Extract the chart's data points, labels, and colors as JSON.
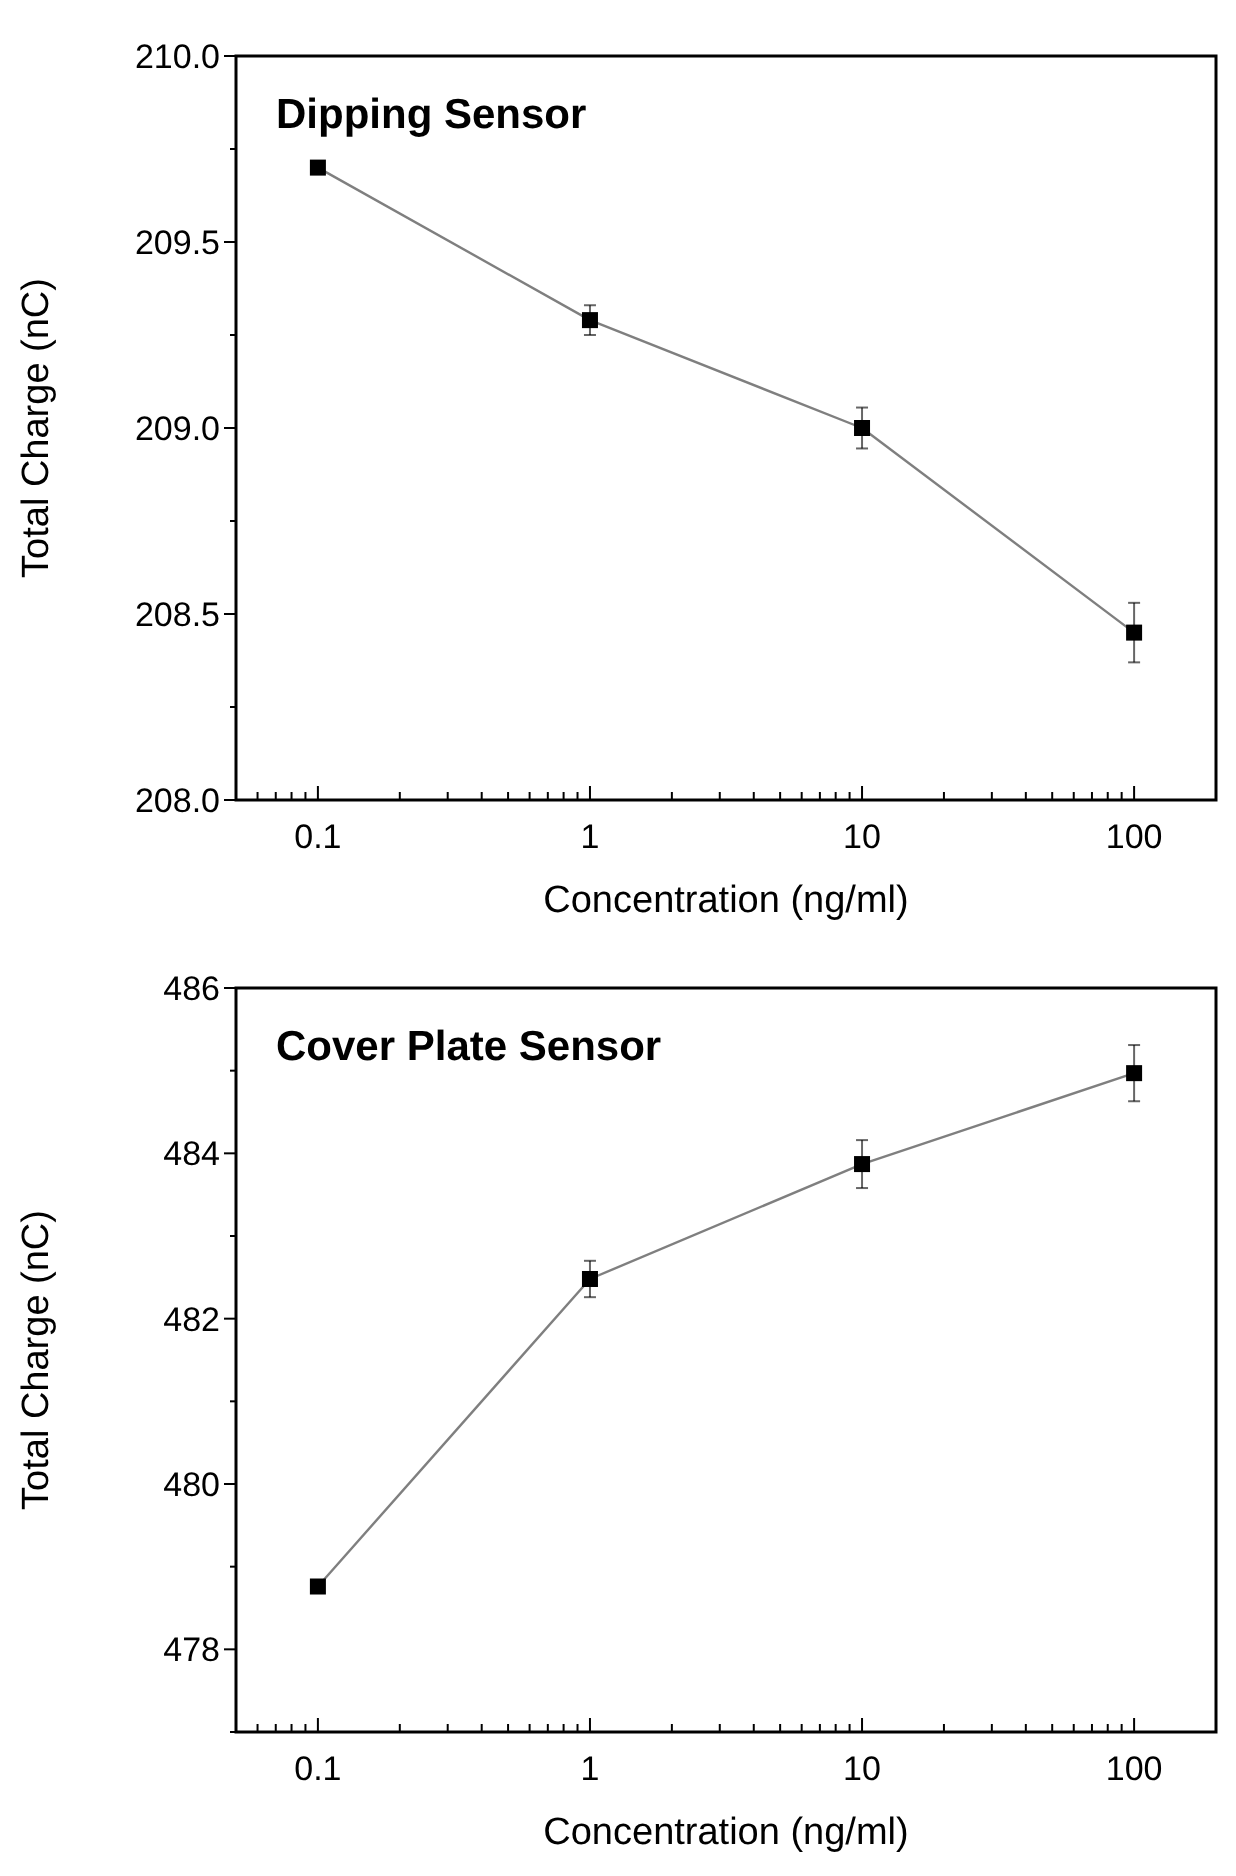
{
  "chart_data": [
    {
      "type": "line",
      "title": "Dipping Sensor",
      "xlabel": "Concentration (ng/ml)",
      "ylabel": "Total Charge (nC)",
      "log": "x",
      "x": [
        0.1,
        1,
        10,
        100
      ],
      "series": [
        {
          "color": "#000000",
          "values": [
            209.7,
            209.29,
            209.0,
            208.45
          ],
          "errors": [
            null,
            0.04,
            0.055,
            0.08
          ]
        }
      ],
      "marker": "square",
      "line_style": "solid",
      "xlim": [
        0.05,
        200
      ],
      "xticks": [
        {
          "value": 0.05,
          "label": null
        },
        {
          "value": 0.06,
          "label": null
        },
        {
          "value": 0.07,
          "label": null
        },
        {
          "value": 0.08,
          "label": null
        },
        {
          "value": 0.09,
          "label": null
        },
        0.1,
        {
          "value": 0.2,
          "label": null
        },
        {
          "value": 0.3,
          "label": null
        },
        {
          "value": 0.4,
          "label": null
        },
        {
          "value": 0.5,
          "label": null
        },
        {
          "value": 0.6,
          "label": null
        },
        {
          "value": 0.7,
          "label": null
        },
        {
          "value": 0.8,
          "label": null
        },
        {
          "value": 0.9,
          "label": null
        },
        1,
        {
          "value": 2,
          "label": null
        },
        {
          "value": 3,
          "label": null
        },
        {
          "value": 4,
          "label": null
        },
        {
          "value": 5,
          "label": null
        },
        {
          "value": 6,
          "label": null
        },
        {
          "value": 7,
          "label": null
        },
        {
          "value": 8,
          "label": null
        },
        {
          "value": 9,
          "label": null
        },
        10,
        {
          "value": 20,
          "label": null
        },
        {
          "value": 30,
          "label": null
        },
        {
          "value": 40,
          "label": null
        },
        {
          "value": 50,
          "label": null
        },
        {
          "value": 60,
          "label": null
        },
        {
          "value": 70,
          "label": null
        },
        {
          "value": 80,
          "label": null
        },
        {
          "value": 90,
          "label": null
        },
        100,
        {
          "value": 200,
          "label": null
        }
      ],
      "ylim": [
        208.0,
        210.0
      ],
      "yticks": [
        {
          "value": 208.0,
          "label": "208.0"
        },
        {
          "value": 208.25,
          "label": null
        },
        {
          "value": 208.5,
          "label": "208.5"
        },
        {
          "value": 208.75,
          "label": null
        },
        {
          "value": 209.0,
          "label": "209.0"
        },
        {
          "value": 209.25,
          "label": null
        },
        {
          "value": 209.5,
          "label": "209.5"
        },
        {
          "value": 209.75,
          "label": null
        },
        {
          "value": 210.0,
          "label": "210.0"
        }
      ]
    },
    {
      "type": "line",
      "title": "Cover Plate Sensor",
      "xlabel": "Concentration (ng/ml)",
      "ylabel": "Total Charge (nC)",
      "log": "x",
      "x": [
        0.1,
        1,
        10,
        100
      ],
      "series": [
        {
          "color": "#000000",
          "values": [
            478.76,
            482.48,
            483.87,
            484.97
          ],
          "errors": [
            null,
            0.22,
            0.29,
            0.34
          ]
        }
      ],
      "marker": "square",
      "line_style": "solid",
      "xlim": [
        0.05,
        200
      ],
      "xticks": [
        {
          "value": 0.05,
          "label": null
        },
        {
          "value": 0.06,
          "label": null
        },
        {
          "value": 0.07,
          "label": null
        },
        {
          "value": 0.08,
          "label": null
        },
        {
          "value": 0.09,
          "label": null
        },
        0.1,
        {
          "value": 0.2,
          "label": null
        },
        {
          "value": 0.3,
          "label": null
        },
        {
          "value": 0.4,
          "label": null
        },
        {
          "value": 0.5,
          "label": null
        },
        {
          "value": 0.6,
          "label": null
        },
        {
          "value": 0.7,
          "label": null
        },
        {
          "value": 0.8,
          "label": null
        },
        {
          "value": 0.9,
          "label": null
        },
        1,
        {
          "value": 2,
          "label": null
        },
        {
          "value": 3,
          "label": null
        },
        {
          "value": 4,
          "label": null
        },
        {
          "value": 5,
          "label": null
        },
        {
          "value": 6,
          "label": null
        },
        {
          "value": 7,
          "label": null
        },
        {
          "value": 8,
          "label": null
        },
        {
          "value": 9,
          "label": null
        },
        10,
        {
          "value": 20,
          "label": null
        },
        {
          "value": 30,
          "label": null
        },
        {
          "value": 40,
          "label": null
        },
        {
          "value": 50,
          "label": null
        },
        {
          "value": 60,
          "label": null
        },
        {
          "value": 70,
          "label": null
        },
        {
          "value": 80,
          "label": null
        },
        {
          "value": 90,
          "label": null
        },
        100,
        {
          "value": 200,
          "label": null
        }
      ],
      "ylim": [
        477,
        486
      ],
      "yticks": [
        {
          "value": 477,
          "label": null
        },
        478,
        {
          "value": 479,
          "label": null
        },
        480,
        {
          "value": 481,
          "label": null
        },
        482,
        {
          "value": 483,
          "label": null
        },
        484,
        {
          "value": 485,
          "label": null
        },
        486
      ]
    }
  ]
}
